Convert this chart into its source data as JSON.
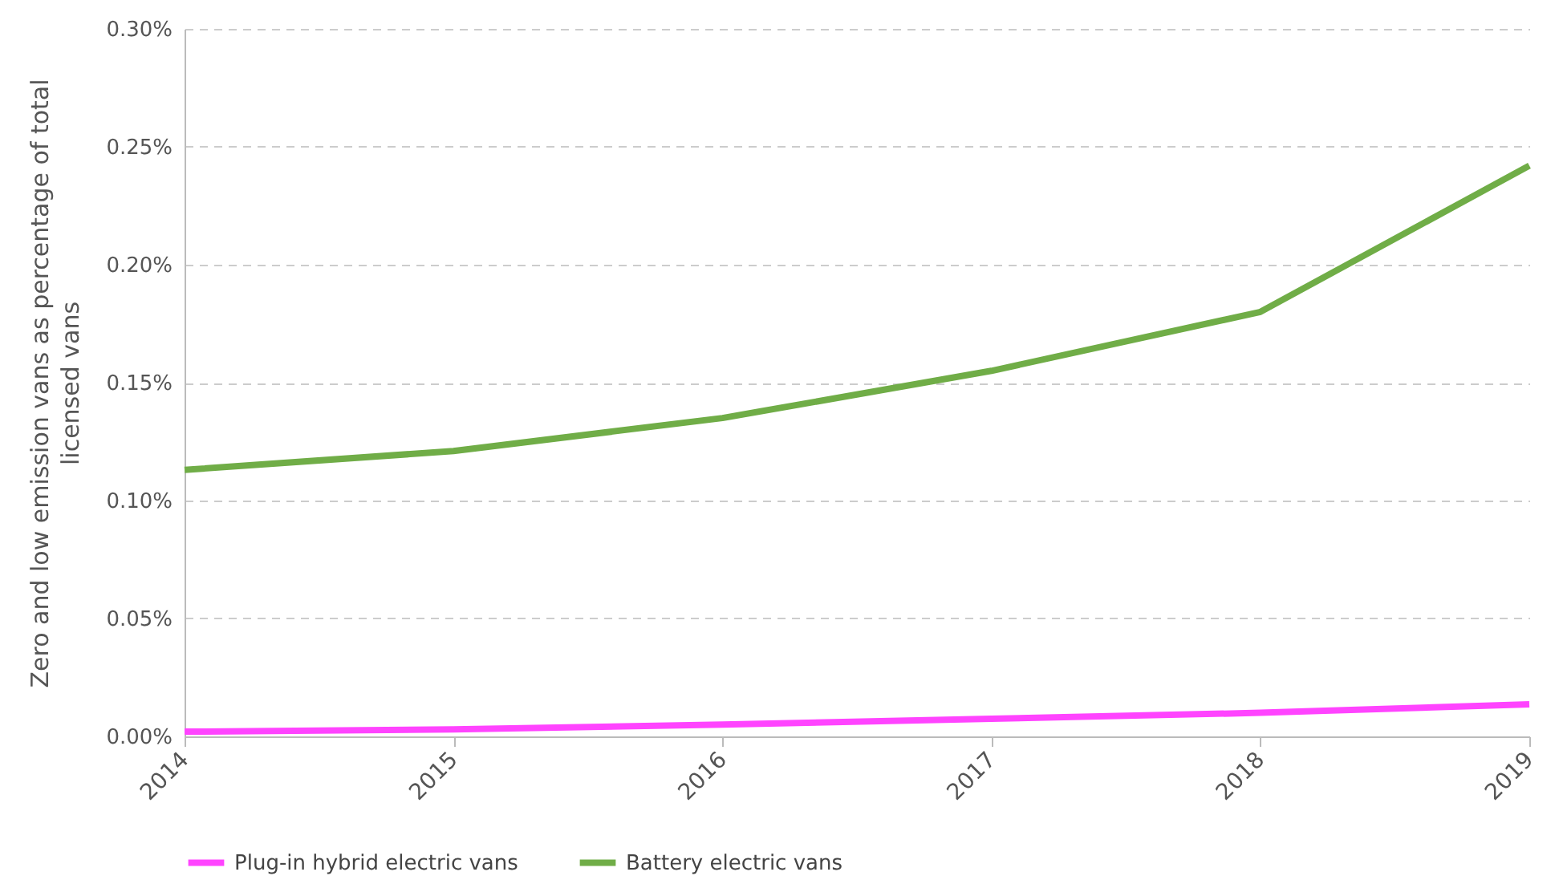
{
  "chart_data": {
    "type": "line",
    "ylabel": "Zero and low emission vans as percentage of total\nlicensed vans",
    "categories": [
      "2014",
      "2015",
      "2016",
      "2017",
      "2018",
      "2019"
    ],
    "series": [
      {
        "name": "Plug-in hybrid electric vans",
        "color": "#ff44ff",
        "values": [
          0.002,
          0.003,
          0.005,
          0.0075,
          0.01,
          0.0136
        ]
      },
      {
        "name": "Battery electric vans",
        "color": "#70ad47",
        "values": [
          0.113,
          0.121,
          0.135,
          0.155,
          0.18,
          0.242
        ]
      }
    ],
    "ylim": [
      0,
      0.3
    ],
    "yticks": [
      {
        "value": 0,
        "label": "0.00%"
      },
      {
        "value": 0.05,
        "label": "0.05%"
      },
      {
        "value": 0.1,
        "label": "0.10%"
      },
      {
        "value": 0.15,
        "label": "0.15%"
      },
      {
        "value": 0.2,
        "label": "0.20%"
      },
      {
        "value": 0.25,
        "label": "0.25%"
      },
      {
        "value": 0.3,
        "label": "0.30%"
      }
    ],
    "grid": "y",
    "legend": "bottom",
    "marker": "none",
    "line_style": "solid"
  }
}
